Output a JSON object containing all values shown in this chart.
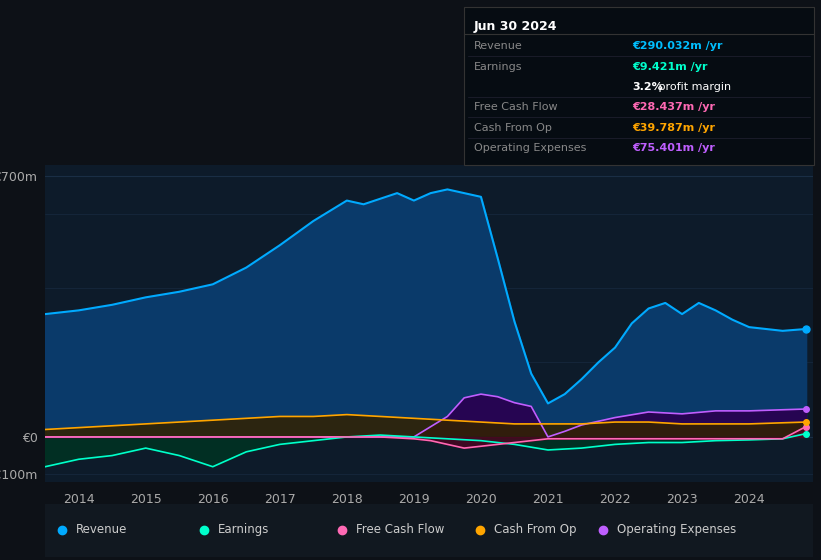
{
  "background_color": "#0d1117",
  "plot_bg_color": "#0d1b2a",
  "title": "Jun 30 2024",
  "ylabel_700": "€700m",
  "ylabel_0": "€0",
  "ylabel_neg100": "-€100m",
  "ylim": [
    -120,
    730
  ],
  "xlim": [
    2013.5,
    2024.95
  ],
  "yticks": [
    -100,
    0,
    700
  ],
  "xticks": [
    2014,
    2015,
    2016,
    2017,
    2018,
    2019,
    2020,
    2021,
    2022,
    2023,
    2024
  ],
  "grid_color": "#1a2e45",
  "series": {
    "revenue": {
      "color": "#00aaff",
      "fill_color": "#0a3a6a",
      "label": "Revenue",
      "x": [
        2013.5,
        2014.0,
        2014.5,
        2015.0,
        2015.5,
        2016.0,
        2016.5,
        2017.0,
        2017.5,
        2018.0,
        2018.25,
        2018.5,
        2018.75,
        2019.0,
        2019.25,
        2019.5,
        2019.75,
        2020.0,
        2020.25,
        2020.5,
        2020.75,
        2021.0,
        2021.25,
        2021.5,
        2021.75,
        2022.0,
        2022.25,
        2022.5,
        2022.75,
        2023.0,
        2023.25,
        2023.5,
        2023.75,
        2024.0,
        2024.5,
        2024.85
      ],
      "y": [
        330,
        340,
        355,
        375,
        390,
        410,
        455,
        515,
        580,
        635,
        625,
        640,
        655,
        635,
        655,
        665,
        655,
        645,
        480,
        310,
        170,
        90,
        115,
        155,
        200,
        240,
        305,
        345,
        360,
        330,
        360,
        340,
        315,
        295,
        285,
        290
      ]
    },
    "earnings": {
      "color": "#00ffcc",
      "fill_color": "#003322",
      "label": "Earnings",
      "x": [
        2013.5,
        2014.0,
        2014.5,
        2015.0,
        2015.5,
        2016.0,
        2016.5,
        2017.0,
        2017.5,
        2018.0,
        2018.5,
        2019.0,
        2019.5,
        2020.0,
        2020.5,
        2021.0,
        2021.5,
        2022.0,
        2022.5,
        2023.0,
        2023.5,
        2024.0,
        2024.5,
        2024.85
      ],
      "y": [
        -80,
        -60,
        -50,
        -30,
        -50,
        -80,
        -40,
        -20,
        -10,
        0,
        5,
        0,
        -5,
        -10,
        -20,
        -35,
        -30,
        -20,
        -15,
        -15,
        -10,
        -8,
        -5,
        9
      ]
    },
    "free_cash_flow": {
      "color": "#ff69b4",
      "fill_color": "#550020",
      "label": "Free Cash Flow",
      "x": [
        2013.5,
        2014.0,
        2014.5,
        2015.0,
        2015.5,
        2016.0,
        2016.5,
        2017.0,
        2017.5,
        2018.0,
        2018.5,
        2019.0,
        2019.25,
        2019.5,
        2019.75,
        2020.0,
        2020.25,
        2020.5,
        2020.75,
        2021.0,
        2021.5,
        2022.0,
        2022.5,
        2023.0,
        2023.5,
        2024.0,
        2024.5,
        2024.85
      ],
      "y": [
        0,
        0,
        0,
        0,
        0,
        0,
        0,
        0,
        0,
        0,
        0,
        -5,
        -10,
        -20,
        -30,
        -25,
        -20,
        -15,
        -10,
        -5,
        -5,
        -5,
        -5,
        -5,
        -5,
        -5,
        -5,
        28
      ]
    },
    "cash_from_op": {
      "color": "#ffa500",
      "fill_color": "#332200",
      "label": "Cash From Op",
      "x": [
        2013.5,
        2014.0,
        2014.5,
        2015.0,
        2015.5,
        2016.0,
        2016.5,
        2017.0,
        2017.5,
        2018.0,
        2018.5,
        2019.0,
        2019.5,
        2020.0,
        2020.5,
        2021.0,
        2021.5,
        2022.0,
        2022.5,
        2023.0,
        2023.5,
        2024.0,
        2024.5,
        2024.85
      ],
      "y": [
        20,
        25,
        30,
        35,
        40,
        45,
        50,
        55,
        55,
        60,
        55,
        50,
        45,
        40,
        35,
        35,
        35,
        40,
        40,
        35,
        35,
        35,
        38,
        40
      ]
    },
    "operating_expenses": {
      "color": "#bf5fff",
      "fill_color": "#2a0050",
      "label": "Operating Expenses",
      "x": [
        2013.5,
        2014.0,
        2015.0,
        2016.0,
        2017.0,
        2018.0,
        2019.0,
        2019.5,
        2019.75,
        2020.0,
        2020.25,
        2020.5,
        2020.75,
        2021.0,
        2021.25,
        2021.5,
        2022.0,
        2022.5,
        2023.0,
        2023.25,
        2023.5,
        2023.75,
        2024.0,
        2024.5,
        2024.85
      ],
      "y": [
        0,
        0,
        0,
        0,
        0,
        0,
        0,
        55,
        105,
        115,
        108,
        92,
        82,
        0,
        15,
        32,
        52,
        67,
        62,
        66,
        70,
        70,
        70,
        73,
        75
      ]
    }
  },
  "legend": [
    {
      "label": "Revenue",
      "color": "#00aaff"
    },
    {
      "label": "Earnings",
      "color": "#00ffcc"
    },
    {
      "label": "Free Cash Flow",
      "color": "#ff69b4"
    },
    {
      "label": "Cash From Op",
      "color": "#ffa500"
    },
    {
      "label": "Operating Expenses",
      "color": "#bf5fff"
    }
  ],
  "info_rows": [
    {
      "label": "Revenue",
      "value": "€290.032m /yr",
      "value_color": "#00bfff",
      "separator": true
    },
    {
      "label": "Earnings",
      "value": "€9.421m /yr",
      "value_color": "#00ffcc",
      "separator": false
    },
    {
      "label": "",
      "value": "3.2% profit margin",
      "value_color": "#ffffff",
      "separator": true,
      "bold_prefix": "3.2%"
    },
    {
      "label": "Free Cash Flow",
      "value": "€28.437m /yr",
      "value_color": "#ff69b4",
      "separator": true
    },
    {
      "label": "Cash From Op",
      "value": "€39.787m /yr",
      "value_color": "#ffa500",
      "separator": true
    },
    {
      "label": "Operating Expenses",
      "value": "€75.401m /yr",
      "value_color": "#bf5fff",
      "separator": false
    }
  ]
}
